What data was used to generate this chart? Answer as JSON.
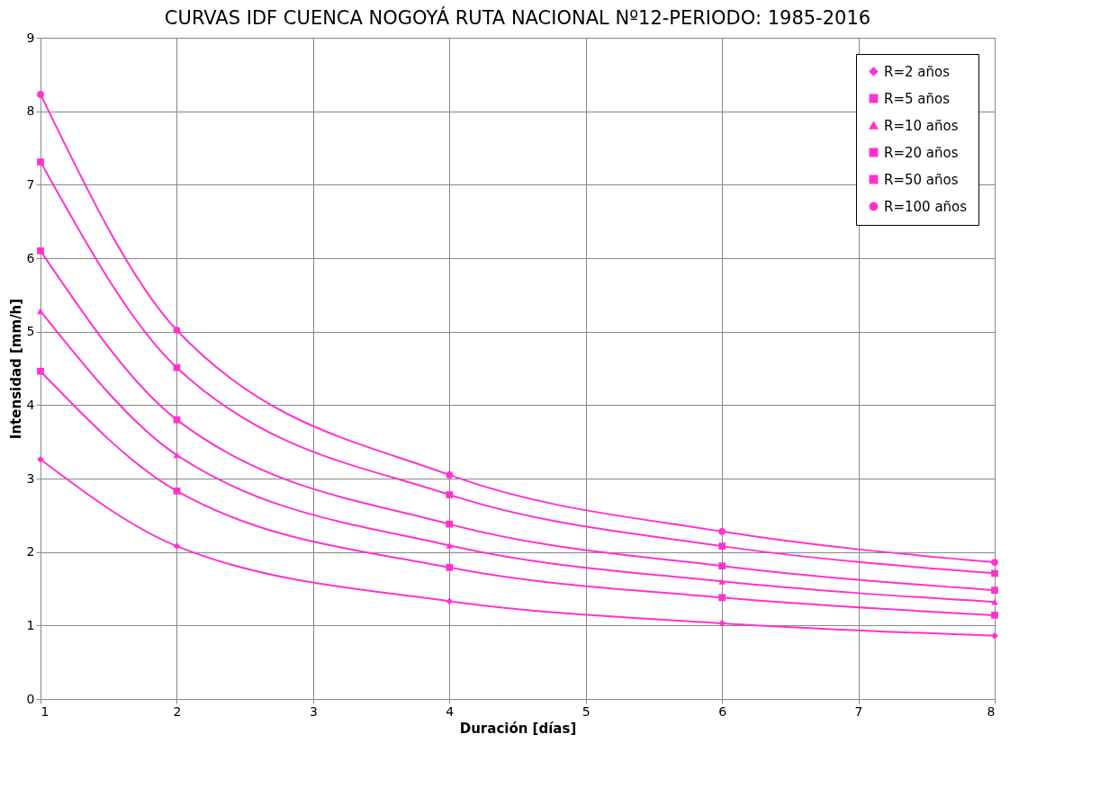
{
  "chart_data": {
    "type": "line",
    "title": "CURVAS IDF CUENCA NOGOYÁ RUTA NACIONAL Nº12-PERIODO: 1985-2016",
    "xlabel": "Duración [días]",
    "ylabel": "Intensidad [mm/h]",
    "x": [
      1,
      2,
      4,
      6,
      8
    ],
    "series": [
      {
        "name": "R=2 años",
        "color": "#ff33cc",
        "marker": "diamond",
        "values": [
          3.26,
          2.08,
          1.33,
          1.03,
          0.86
        ]
      },
      {
        "name": "R=5 años",
        "color": "#ff33cc",
        "marker": "square",
        "values": [
          4.46,
          2.83,
          1.79,
          1.38,
          1.14
        ]
      },
      {
        "name": "R=10 años",
        "color": "#ff33cc",
        "marker": "triangle",
        "values": [
          5.28,
          3.32,
          2.09,
          1.6,
          1.32
        ]
      },
      {
        "name": "R=20 años",
        "color": "#ff33cc",
        "marker": "square",
        "values": [
          6.1,
          3.8,
          2.38,
          1.81,
          1.48
        ]
      },
      {
        "name": "R=50 años",
        "color": "#ff33cc",
        "marker": "square",
        "values": [
          7.31,
          4.51,
          2.78,
          2.08,
          1.71
        ]
      },
      {
        "name": "R=100 años",
        "color": "#ff33cc",
        "marker": "circle",
        "values": [
          8.23,
          5.02,
          3.05,
          2.28,
          1.86
        ]
      }
    ],
    "xlim": [
      1,
      8
    ],
    "xticks": [
      1,
      2,
      3,
      4,
      5,
      6,
      7,
      8
    ],
    "ylim": [
      0,
      9
    ],
    "yticks": [
      0,
      1,
      2,
      3,
      4,
      5,
      6,
      7,
      8,
      9
    ],
    "grid": true,
    "legend": "top right",
    "line_style": "solid"
  }
}
